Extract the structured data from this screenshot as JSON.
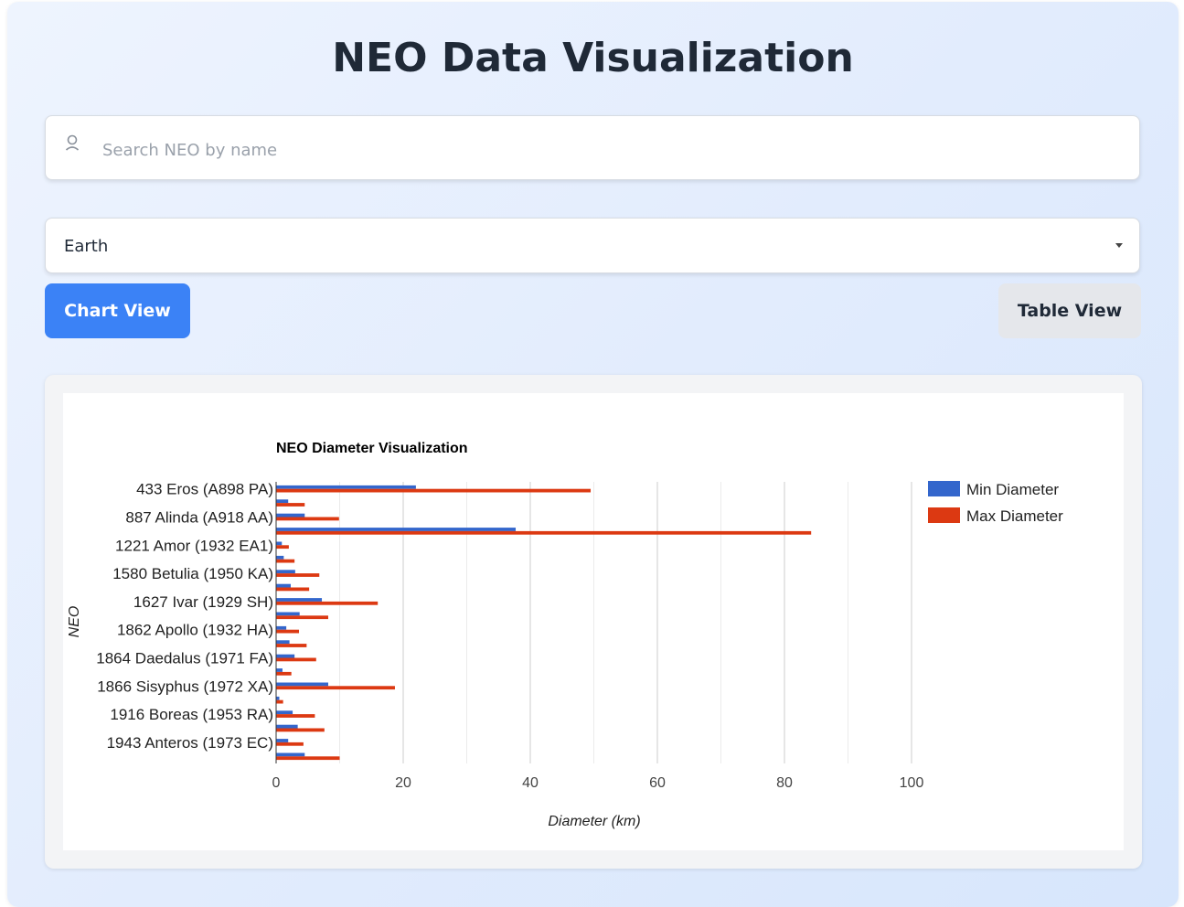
{
  "header": {
    "title": "NEO Data Visualization"
  },
  "search": {
    "placeholder": "Search NEO by name",
    "value": ""
  },
  "filter": {
    "selected": "Earth"
  },
  "view_buttons": {
    "chart_label": "Chart View",
    "table_label": "Table View"
  },
  "colors": {
    "min_series": "#3366cc",
    "max_series": "#dc3912",
    "primary_button": "#3b82f6"
  },
  "chart_data": {
    "type": "bar",
    "orientation": "horizontal",
    "title": "NEO Diameter Visualization",
    "xlabel": "Diameter (km)",
    "ylabel": "NEO",
    "xlim": [
      0,
      100
    ],
    "xticks": [
      0,
      20,
      40,
      60,
      80,
      100
    ],
    "grid": true,
    "legend_position": "right",
    "categories": [
      "433 Eros (A898 PA)",
      "",
      "887 Alinda (A918 AA)",
      "",
      "1221 Amor (1932 EA1)",
      "",
      "1580 Betulia (1950 KA)",
      "",
      "1627 Ivar (1929 SH)",
      "",
      "1862 Apollo (1932 HA)",
      "",
      "1864 Daedalus (1971 FA)",
      "",
      "1866 Sisyphus (1972 XA)",
      "",
      "1916 Boreas (1953 RA)",
      "",
      "1943 Anteros (1973 EC)",
      ""
    ],
    "series": [
      {
        "name": "Min Diameter",
        "values": [
          22.0,
          1.9,
          4.5,
          37.7,
          0.9,
          1.2,
          3.0,
          2.3,
          7.2,
          3.7,
          1.6,
          2.1,
          2.9,
          1.0,
          8.2,
          0.5,
          2.6,
          3.4,
          1.9,
          4.5
        ]
      },
      {
        "name": "Max Diameter",
        "values": [
          49.5,
          4.5,
          9.9,
          84.2,
          2.0,
          2.9,
          6.8,
          5.2,
          16.0,
          8.2,
          3.6,
          4.8,
          6.3,
          2.4,
          18.7,
          1.1,
          6.1,
          7.6,
          4.3,
          10.0
        ]
      }
    ]
  }
}
